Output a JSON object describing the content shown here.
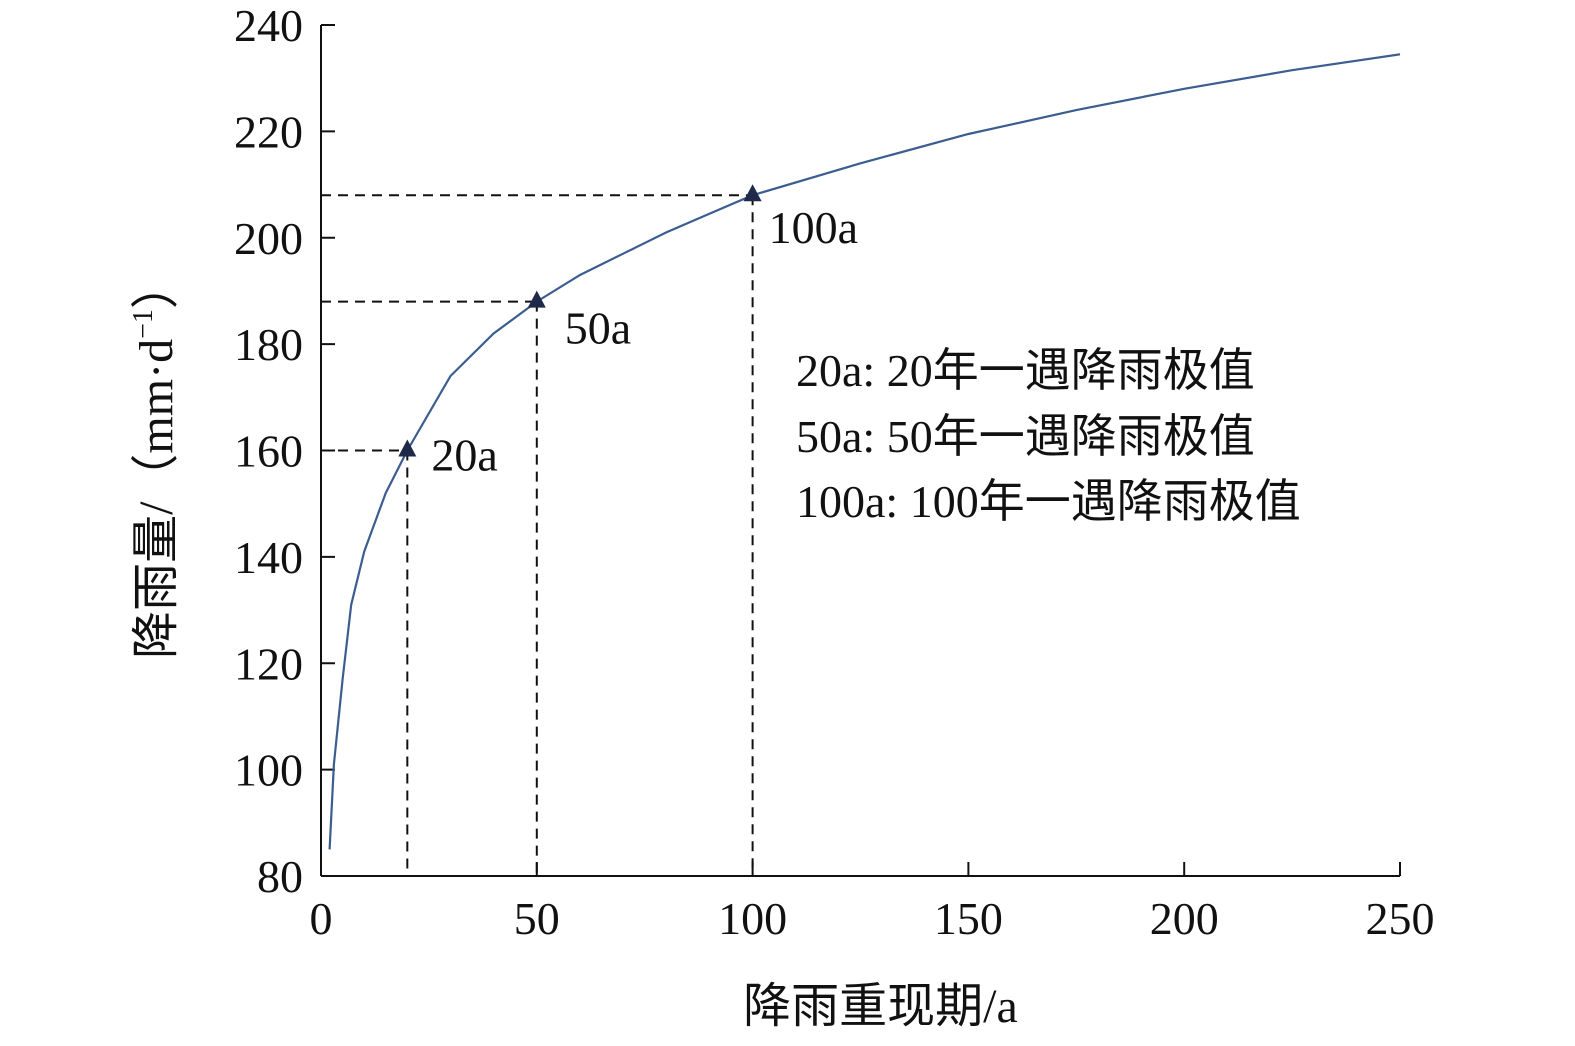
{
  "chart_data": {
    "type": "line",
    "xlabel": "降雨重现期/a",
    "ylabel_main": "降雨量/（mm·d",
    "ylabel_sup": "−1",
    "ylabel_close": "）",
    "xlim": [
      0,
      250
    ],
    "ylim": [
      80,
      240
    ],
    "x_ticks": [
      0,
      50,
      100,
      150,
      200,
      250
    ],
    "y_ticks": [
      80,
      100,
      120,
      140,
      160,
      180,
      200,
      220,
      240
    ],
    "x_tick_labels": [
      "0",
      "50",
      "100",
      "150",
      "200",
      "250"
    ],
    "y_tick_labels": [
      "80",
      "100",
      "120",
      "140",
      "160",
      "180",
      "200",
      "220",
      "240"
    ],
    "grid": false,
    "legend": "none",
    "series": [
      {
        "color": "#3b5d8f",
        "x": [
          2,
          3,
          5,
          7,
          10,
          15,
          20,
          30,
          40,
          50,
          60,
          70,
          80,
          90,
          100,
          125,
          150,
          175,
          200,
          225,
          250
        ],
        "y": [
          85,
          101,
          117,
          131,
          141,
          152,
          160,
          174,
          182,
          188,
          193,
          197,
          201,
          204.5,
          208,
          214,
          219.5,
          224,
          228,
          231.5,
          234.5
        ]
      }
    ],
    "markers": [
      {
        "x": 20,
        "y": 160,
        "label": "20a",
        "color": "#1f2a4a"
      },
      {
        "x": 50,
        "y": 188,
        "label": "50a",
        "color": "#1f2a4a"
      },
      {
        "x": 100,
        "y": 208,
        "label": "100a",
        "color": "#1f2a4a"
      }
    ],
    "annotations": [
      "20a: 20年一遇降雨极值",
      "50a: 50年一遇降雨极值",
      "100a: 100年一遇降雨极值"
    ]
  }
}
